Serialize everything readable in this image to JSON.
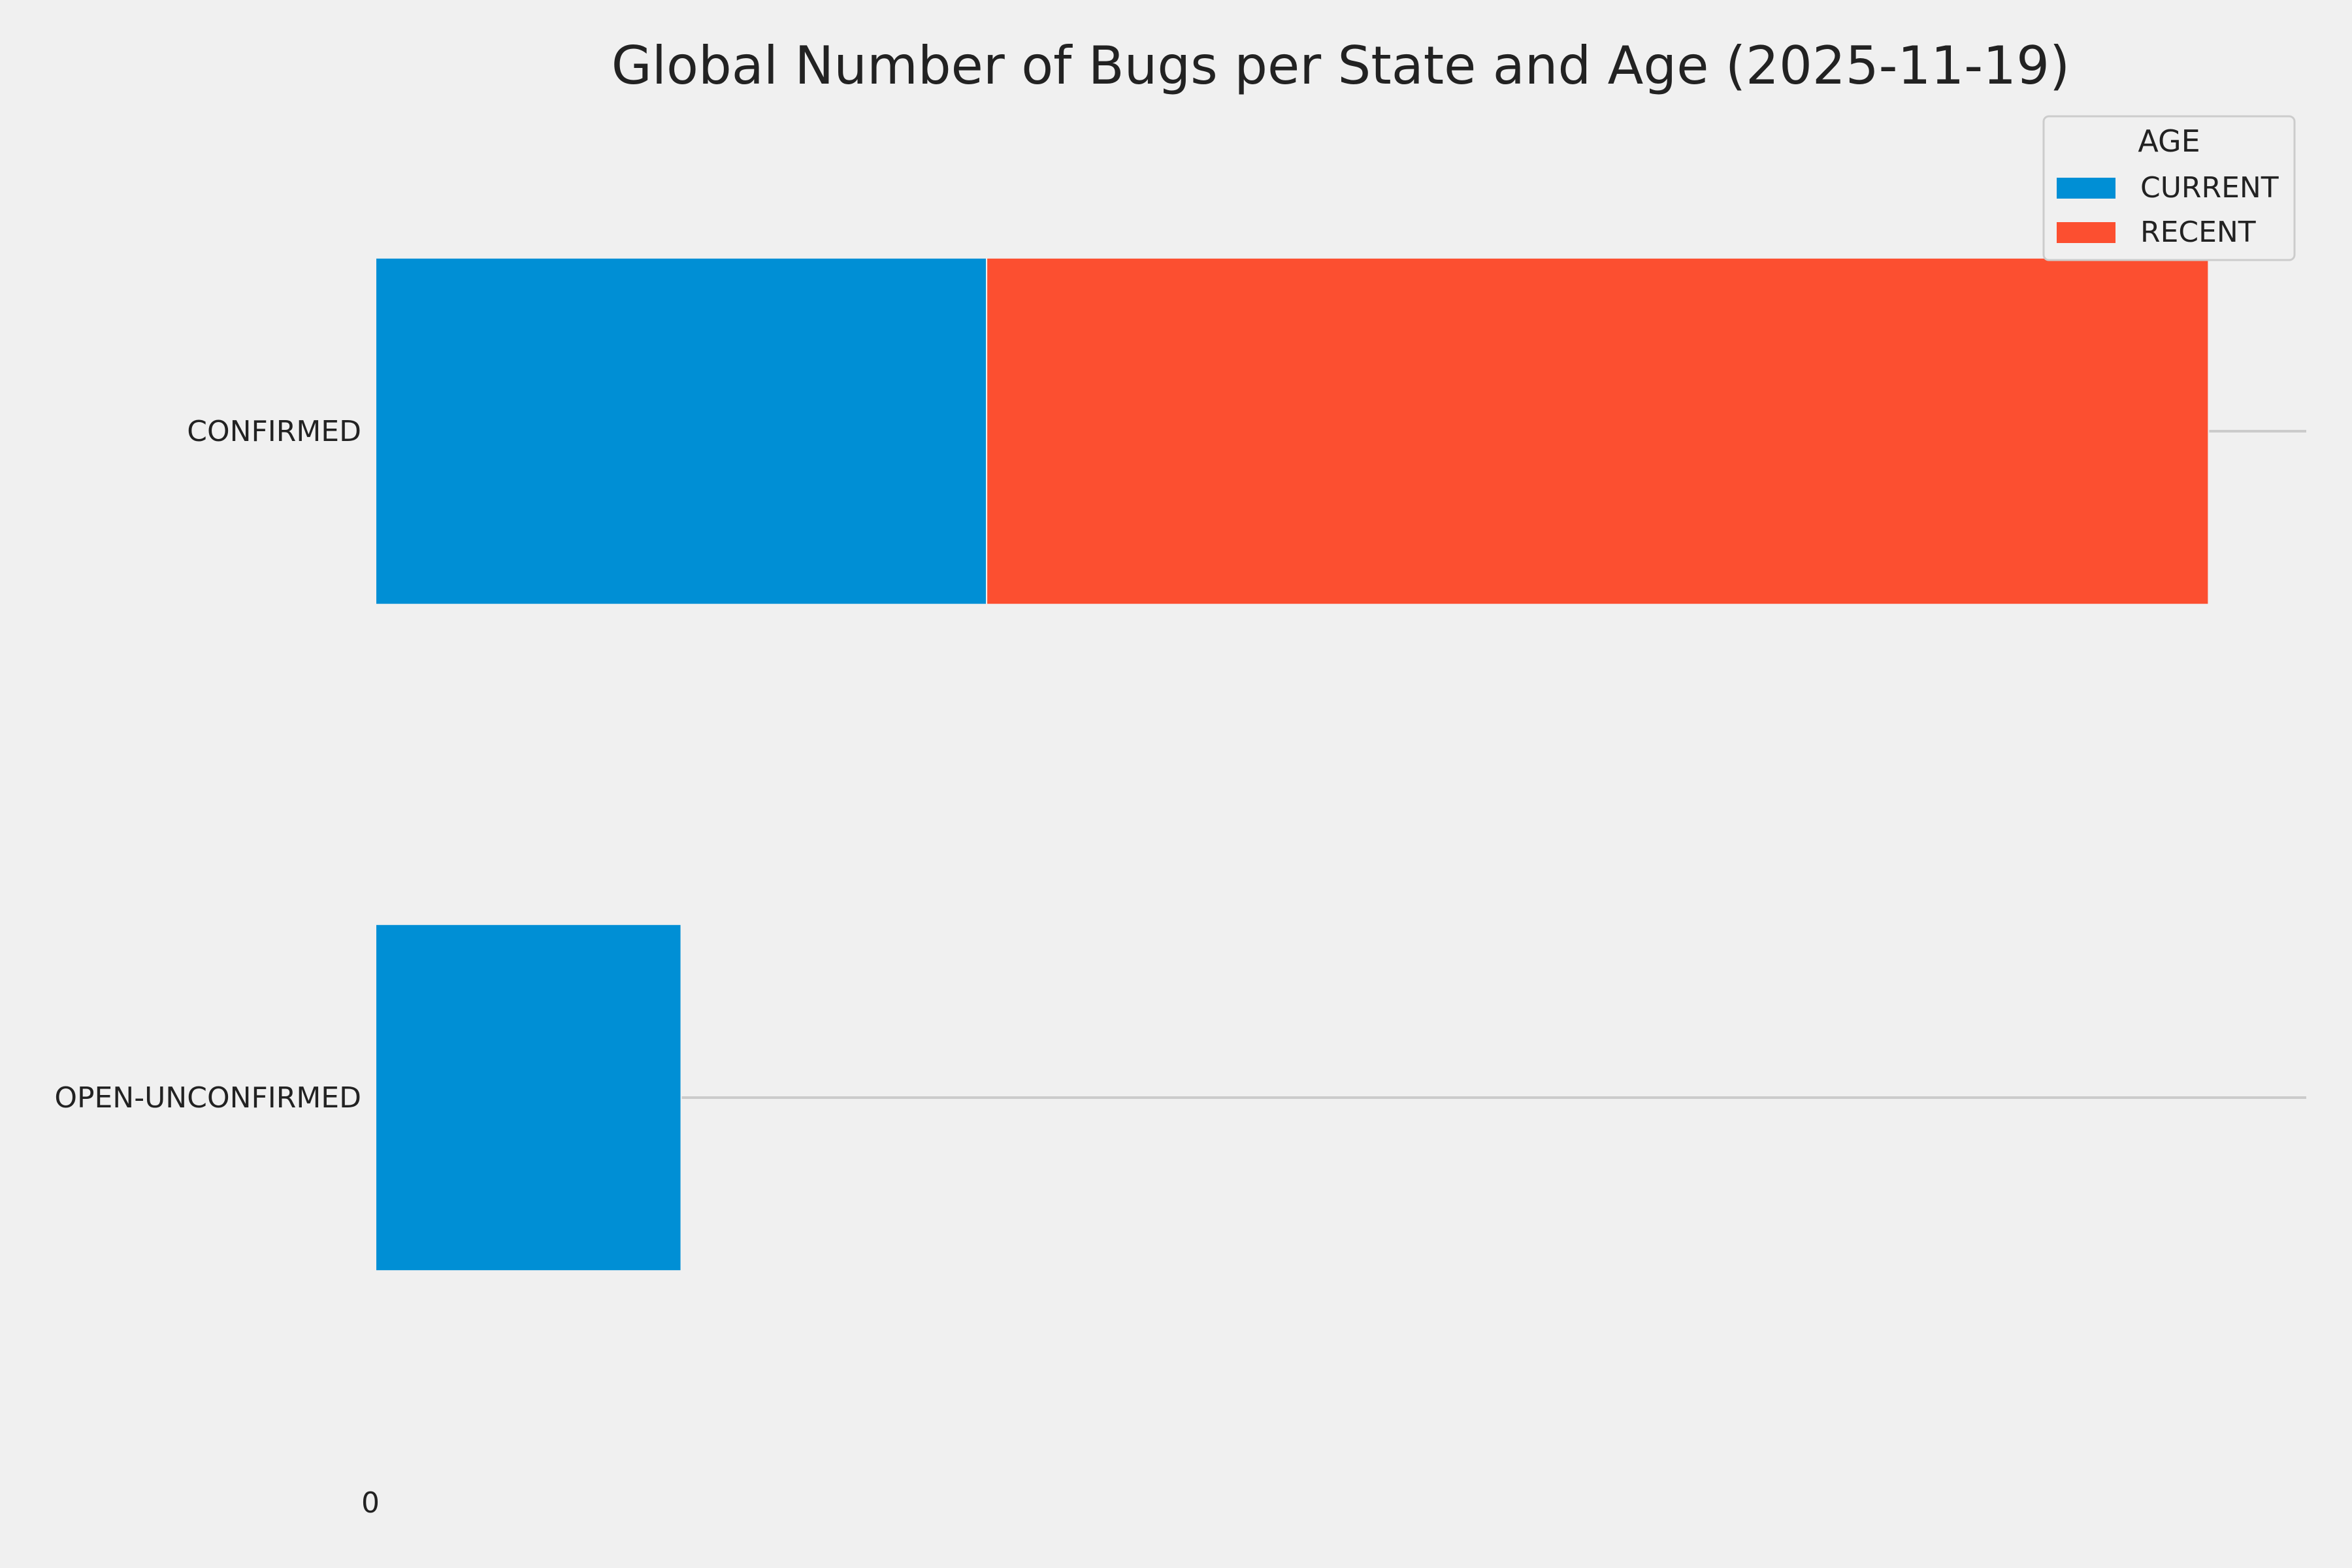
{
  "chart_data": {
    "type": "bar",
    "orientation": "horizontal",
    "stacked": true,
    "title": "Global Number of Bugs per State and Age (2025-11-19)",
    "xlabel": "",
    "ylabel": "",
    "categories": [
      "CONFIRMED",
      "OPEN-UNCONFIRMED"
    ],
    "series": [
      {
        "name": "CURRENT",
        "values": [
          10,
          5
        ]
      },
      {
        "name": "RECENT",
        "values": [
          20,
          0
        ]
      }
    ],
    "xlim": [
      0,
      31.6
    ],
    "x_tick_labels": [
      "0"
    ],
    "grid": true,
    "legend": {
      "title": "AGE",
      "placement": "top-right"
    },
    "colors": {
      "CURRENT": "#008fd5",
      "RECENT": "#fc4f30",
      "grid": "#cbcbcb",
      "background": "#f0f0f0"
    }
  }
}
